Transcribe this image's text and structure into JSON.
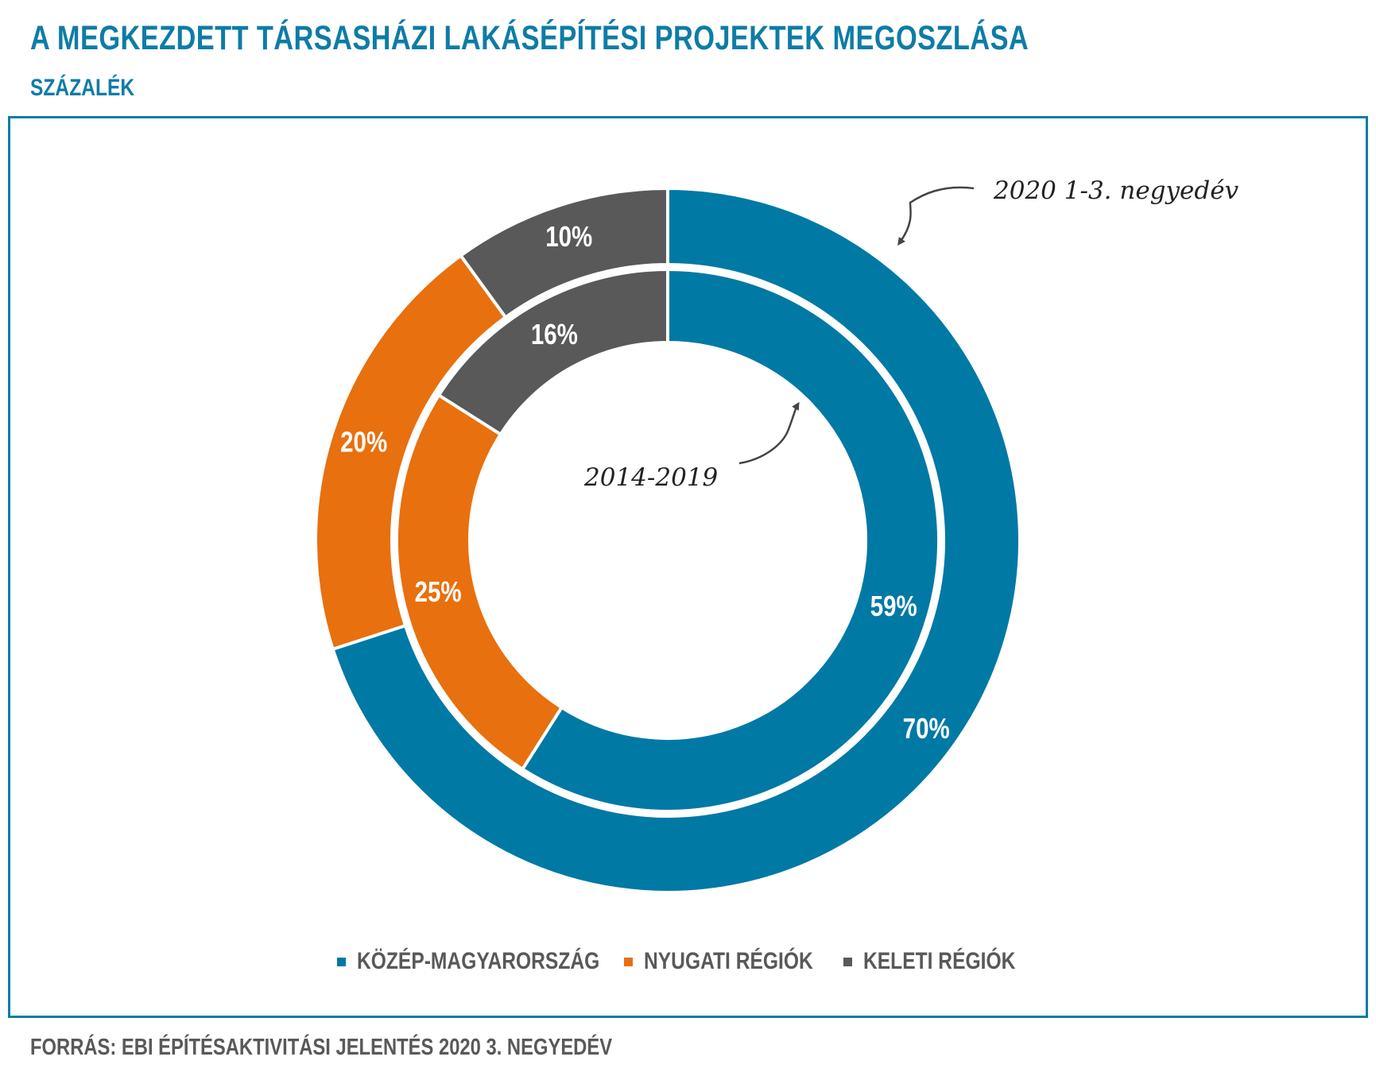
{
  "title": "A MEGKEZDETT TÁRSASHÁZI LAKÁSÉPÍTÉSI PROJEKTEK MEGOSZLÁSA",
  "subtitle": "SZÁZALÉK",
  "source": "FORRÁS: EBI ÉPÍTÉSAKTIVITÁSI JELENTÉS 2020 3. NEGYEDÉV",
  "colors": {
    "kozep": "#0079a5",
    "nyugati": "#e8700e",
    "keleti": "#595959",
    "accent": "#0e7ca6"
  },
  "chart_data": {
    "type": "pie",
    "subtype": "nested-donut",
    "categories": [
      "KÖZÉP-MAGYARORSZÁG",
      "NYUGATI RÉGIÓK",
      "KELETI RÉGIÓK"
    ],
    "series": [
      {
        "name": "2020 1-3. negyedév",
        "ring": "outer",
        "values": [
          70,
          20,
          10
        ],
        "labels": [
          "70%",
          "20%",
          "10%"
        ]
      },
      {
        "name": "2014-2019",
        "ring": "inner",
        "values": [
          59,
          25,
          16
        ],
        "labels": [
          "59%",
          "25%",
          "16%"
        ]
      }
    ],
    "annotations": {
      "outer": "2020 1-3. negyedév",
      "inner": "2014-2019"
    },
    "legend_position": "bottom"
  }
}
